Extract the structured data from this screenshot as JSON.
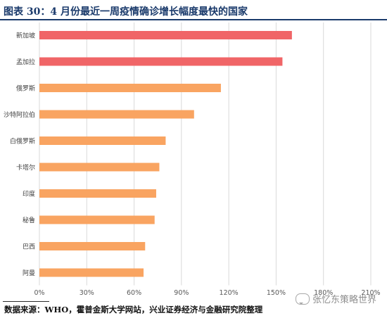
{
  "header": {
    "title": "图表 30：4 月份最近一周疫情确诊增长幅度最快的国家"
  },
  "footer": {
    "source": "数据来源：WHO，霍普金斯大学网站，兴业证券经济与金融研究院整理"
  },
  "watermark": {
    "text": "张忆东策略世界",
    "icon": "wechat-icon"
  },
  "chart_data": {
    "type": "bar",
    "orientation": "horizontal",
    "title": "",
    "xlabel": "",
    "ylabel": "",
    "categories": [
      "新加坡",
      "孟加拉",
      "俄罗斯",
      "沙特阿拉伯",
      "白俄罗斯",
      "卡塔尔",
      "印度",
      "秘鲁",
      "巴西",
      "阿曼"
    ],
    "values": [
      1.6,
      1.54,
      1.15,
      0.98,
      0.8,
      0.76,
      0.74,
      0.73,
      0.67,
      0.66
    ],
    "xlim": [
      0,
      2.1
    ],
    "xticks": [
      0,
      0.3,
      0.6,
      0.9,
      1.2,
      1.5,
      1.8,
      2.1
    ],
    "xtick_labels": [
      "0%",
      "30%",
      "60%",
      "90%",
      "120%",
      "150%",
      "180%",
      "210%"
    ],
    "grid": true,
    "colors": {
      "top": "#f06567",
      "rest": "#f9a461",
      "grid": "#d9d9d9",
      "axis_text": "#595959"
    }
  }
}
